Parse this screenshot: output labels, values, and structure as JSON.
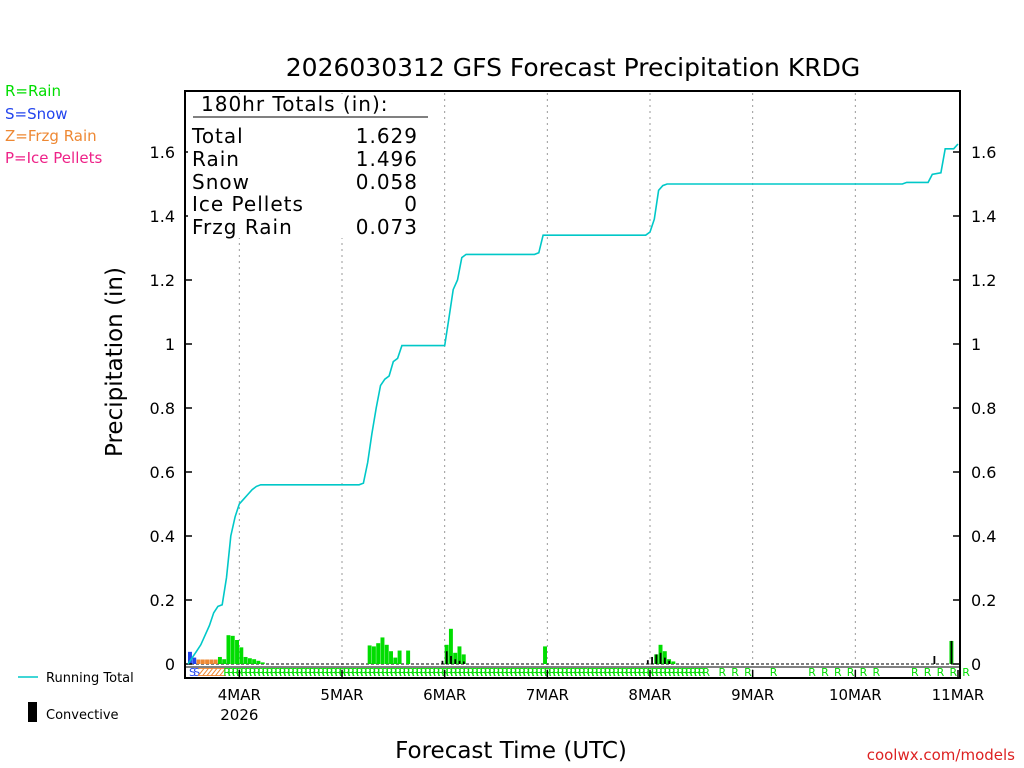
{
  "colors": {
    "rain": "#00dd00",
    "snow": "#2244ee",
    "frzg_rain": "#ee8833",
    "ice_pellets": "#ee2288",
    "running_total": "#00c8c8",
    "convective": "#000000",
    "credit": "#dd2222"
  },
  "legend": {
    "rain": "R=Rain",
    "snow": "S=Snow",
    "frzg_rain": "Z=Frzg Rain",
    "ice_pellets": "P=Ice Pellets"
  },
  "footer_legend": {
    "running_total": "Running Total",
    "convective": "Convective"
  },
  "totals": {
    "header": "180hr Totals (in):",
    "rows": [
      {
        "label": "Total",
        "value": "1.629"
      },
      {
        "label": "Rain",
        "value": "1.496"
      },
      {
        "label": "Snow",
        "value": "0.058"
      },
      {
        "label": "Ice Pellets",
        "value": "0"
      },
      {
        "label": "Frzg Rain",
        "value": "0.073"
      }
    ]
  },
  "credit": "coolwx.com/models",
  "chart_data": {
    "type": "bar",
    "title": "2026030312 GFS Forecast Precipitation KRDG",
    "xlabel": "Forecast Time (UTC)",
    "ylabel": "Precipitation (in)",
    "xlim_hours": [
      0,
      180
    ],
    "ylim": [
      0,
      1.8
    ],
    "yticks": [
      0,
      0.2,
      0.4,
      0.6,
      0.8,
      1,
      1.2,
      1.4,
      1.6
    ],
    "ytick_labels": [
      "0",
      "0.2",
      "0.4",
      "0.6",
      "0.8",
      "1",
      "1.2",
      "1.4",
      "1.6"
    ],
    "xticks": [
      {
        "hour": 12,
        "label": "4MAR",
        "sublabel": "2026"
      },
      {
        "hour": 36,
        "label": "5MAR"
      },
      {
        "hour": 60,
        "label": "6MAR"
      },
      {
        "hour": 84,
        "label": "7MAR"
      },
      {
        "hour": 108,
        "label": "8MAR"
      },
      {
        "hour": 132,
        "label": "9MAR"
      },
      {
        "hour": 156,
        "label": "10MAR"
      },
      {
        "hour": 180,
        "label": "11MAR"
      }
    ],
    "running_total": [
      [
        0,
        0.0
      ],
      [
        1,
        0.02
      ],
      [
        2,
        0.04
      ],
      [
        3,
        0.06
      ],
      [
        4,
        0.09
      ],
      [
        5,
        0.12
      ],
      [
        6,
        0.16
      ],
      [
        7,
        0.18
      ],
      [
        8,
        0.185
      ],
      [
        9,
        0.27
      ],
      [
        10,
        0.4
      ],
      [
        11,
        0.46
      ],
      [
        12,
        0.5
      ],
      [
        13,
        0.515
      ],
      [
        14,
        0.53
      ],
      [
        15,
        0.545
      ],
      [
        16,
        0.555
      ],
      [
        17,
        0.56
      ],
      [
        18,
        0.56
      ],
      [
        40,
        0.56
      ],
      [
        41,
        0.565
      ],
      [
        42,
        0.63
      ],
      [
        43,
        0.72
      ],
      [
        44,
        0.8
      ],
      [
        45,
        0.87
      ],
      [
        46,
        0.89
      ],
      [
        47,
        0.9
      ],
      [
        48,
        0.945
      ],
      [
        49,
        0.955
      ],
      [
        50,
        0.995
      ],
      [
        60,
        0.995
      ],
      [
        61,
        1.08
      ],
      [
        62,
        1.17
      ],
      [
        63,
        1.2
      ],
      [
        64,
        1.27
      ],
      [
        65,
        1.28
      ],
      [
        81,
        1.28
      ],
      [
        82,
        1.285
      ],
      [
        83,
        1.34
      ],
      [
        107,
        1.34
      ],
      [
        108,
        1.35
      ],
      [
        109,
        1.39
      ],
      [
        110,
        1.48
      ],
      [
        111,
        1.495
      ],
      [
        112,
        1.5
      ],
      [
        167,
        1.5
      ],
      [
        168,
        1.505
      ],
      [
        173,
        1.505
      ],
      [
        174,
        1.53
      ],
      [
        176,
        1.535
      ],
      [
        177,
        1.61
      ],
      [
        179,
        1.61
      ],
      [
        180,
        1.625
      ]
    ],
    "bars": [
      {
        "hour": 0,
        "type": "snow",
        "value": 0.038
      },
      {
        "hour": 1,
        "type": "snow",
        "value": 0.02
      },
      {
        "hour": 2,
        "type": "frzg_rain",
        "value": 0.014
      },
      {
        "hour": 3,
        "type": "frzg_rain",
        "value": 0.014
      },
      {
        "hour": 4,
        "type": "frzg_rain",
        "value": 0.014
      },
      {
        "hour": 5,
        "type": "frzg_rain",
        "value": 0.014
      },
      {
        "hour": 6,
        "type": "frzg_rain",
        "value": 0.014
      },
      {
        "hour": 7,
        "type": "rain",
        "value": 0.022
      },
      {
        "hour": 8,
        "type": "rain",
        "value": 0.015
      },
      {
        "hour": 9,
        "type": "rain",
        "value": 0.09
      },
      {
        "hour": 10,
        "type": "rain",
        "value": 0.088
      },
      {
        "hour": 11,
        "type": "rain",
        "value": 0.075
      },
      {
        "hour": 12,
        "type": "rain",
        "value": 0.052
      },
      {
        "hour": 13,
        "type": "rain",
        "value": 0.022
      },
      {
        "hour": 14,
        "type": "rain",
        "value": 0.018
      },
      {
        "hour": 15,
        "type": "rain",
        "value": 0.015
      },
      {
        "hour": 16,
        "type": "rain",
        "value": 0.01
      },
      {
        "hour": 17,
        "type": "rain",
        "value": 0.005
      },
      {
        "hour": 42,
        "type": "rain",
        "value": 0.058
      },
      {
        "hour": 43,
        "type": "rain",
        "value": 0.055
      },
      {
        "hour": 44,
        "type": "rain",
        "value": 0.065
      },
      {
        "hour": 45,
        "type": "rain",
        "value": 0.083
      },
      {
        "hour": 46,
        "type": "rain",
        "value": 0.06
      },
      {
        "hour": 47,
        "type": "rain",
        "value": 0.04
      },
      {
        "hour": 48,
        "type": "rain",
        "value": 0.02
      },
      {
        "hour": 49,
        "type": "rain",
        "value": 0.042
      },
      {
        "hour": 51,
        "type": "rain",
        "value": 0.042
      },
      {
        "hour": 60,
        "type": "rain",
        "value": 0.06
      },
      {
        "hour": 61,
        "type": "rain",
        "value": 0.11
      },
      {
        "hour": 62,
        "type": "rain",
        "value": 0.035
      },
      {
        "hour": 63,
        "type": "rain",
        "value": 0.055
      },
      {
        "hour": 64,
        "type": "rain",
        "value": 0.03
      },
      {
        "hour": 83,
        "type": "rain",
        "value": 0.055
      },
      {
        "hour": 109,
        "type": "rain",
        "value": 0.03
      },
      {
        "hour": 110,
        "type": "rain",
        "value": 0.06
      },
      {
        "hour": 111,
        "type": "rain",
        "value": 0.04
      },
      {
        "hour": 112,
        "type": "rain",
        "value": 0.015
      },
      {
        "hour": 113,
        "type": "rain",
        "value": 0.008
      },
      {
        "hour": 178,
        "type": "rain",
        "value": 0.072
      }
    ],
    "convective": [
      {
        "hour": 59,
        "value": 0.01
      },
      {
        "hour": 60,
        "value": 0.04
      },
      {
        "hour": 61,
        "value": 0.025
      },
      {
        "hour": 62,
        "value": 0.015
      },
      {
        "hour": 63,
        "value": 0.01
      },
      {
        "hour": 64,
        "value": 0.008
      },
      {
        "hour": 107,
        "value": 0.012
      },
      {
        "hour": 108,
        "value": 0.022
      },
      {
        "hour": 109,
        "value": 0.03
      },
      {
        "hour": 110,
        "value": 0.035
      },
      {
        "hour": 111,
        "value": 0.02
      },
      {
        "hour": 112,
        "value": 0.01
      },
      {
        "hour": 174,
        "value": 0.025
      },
      {
        "hour": 178,
        "value": 0.072
      }
    ],
    "ptype_strip": {
      "hourly": [
        {
          "from": 0,
          "to": 1,
          "code": "S",
          "type": "snow"
        },
        {
          "from": 2,
          "to": 7,
          "code": "Z",
          "type": "frzg_rain"
        },
        {
          "from": 8,
          "to": 120,
          "code": "R",
          "type": "rain"
        }
      ],
      "sparse": [
        {
          "hour": 124,
          "code": "R"
        },
        {
          "hour": 127,
          "code": "R"
        },
        {
          "hour": 130,
          "code": "R"
        },
        {
          "hour": 136,
          "code": "R"
        },
        {
          "hour": 145,
          "code": "R"
        },
        {
          "hour": 148,
          "code": "R"
        },
        {
          "hour": 151,
          "code": "R"
        },
        {
          "hour": 154,
          "code": "R"
        },
        {
          "hour": 157,
          "code": "R"
        },
        {
          "hour": 160,
          "code": "R"
        },
        {
          "hour": 169,
          "code": "R"
        },
        {
          "hour": 172,
          "code": "R"
        },
        {
          "hour": 175,
          "code": "R"
        },
        {
          "hour": 178,
          "code": "R"
        },
        {
          "hour": 181,
          "code": "R"
        }
      ]
    }
  }
}
